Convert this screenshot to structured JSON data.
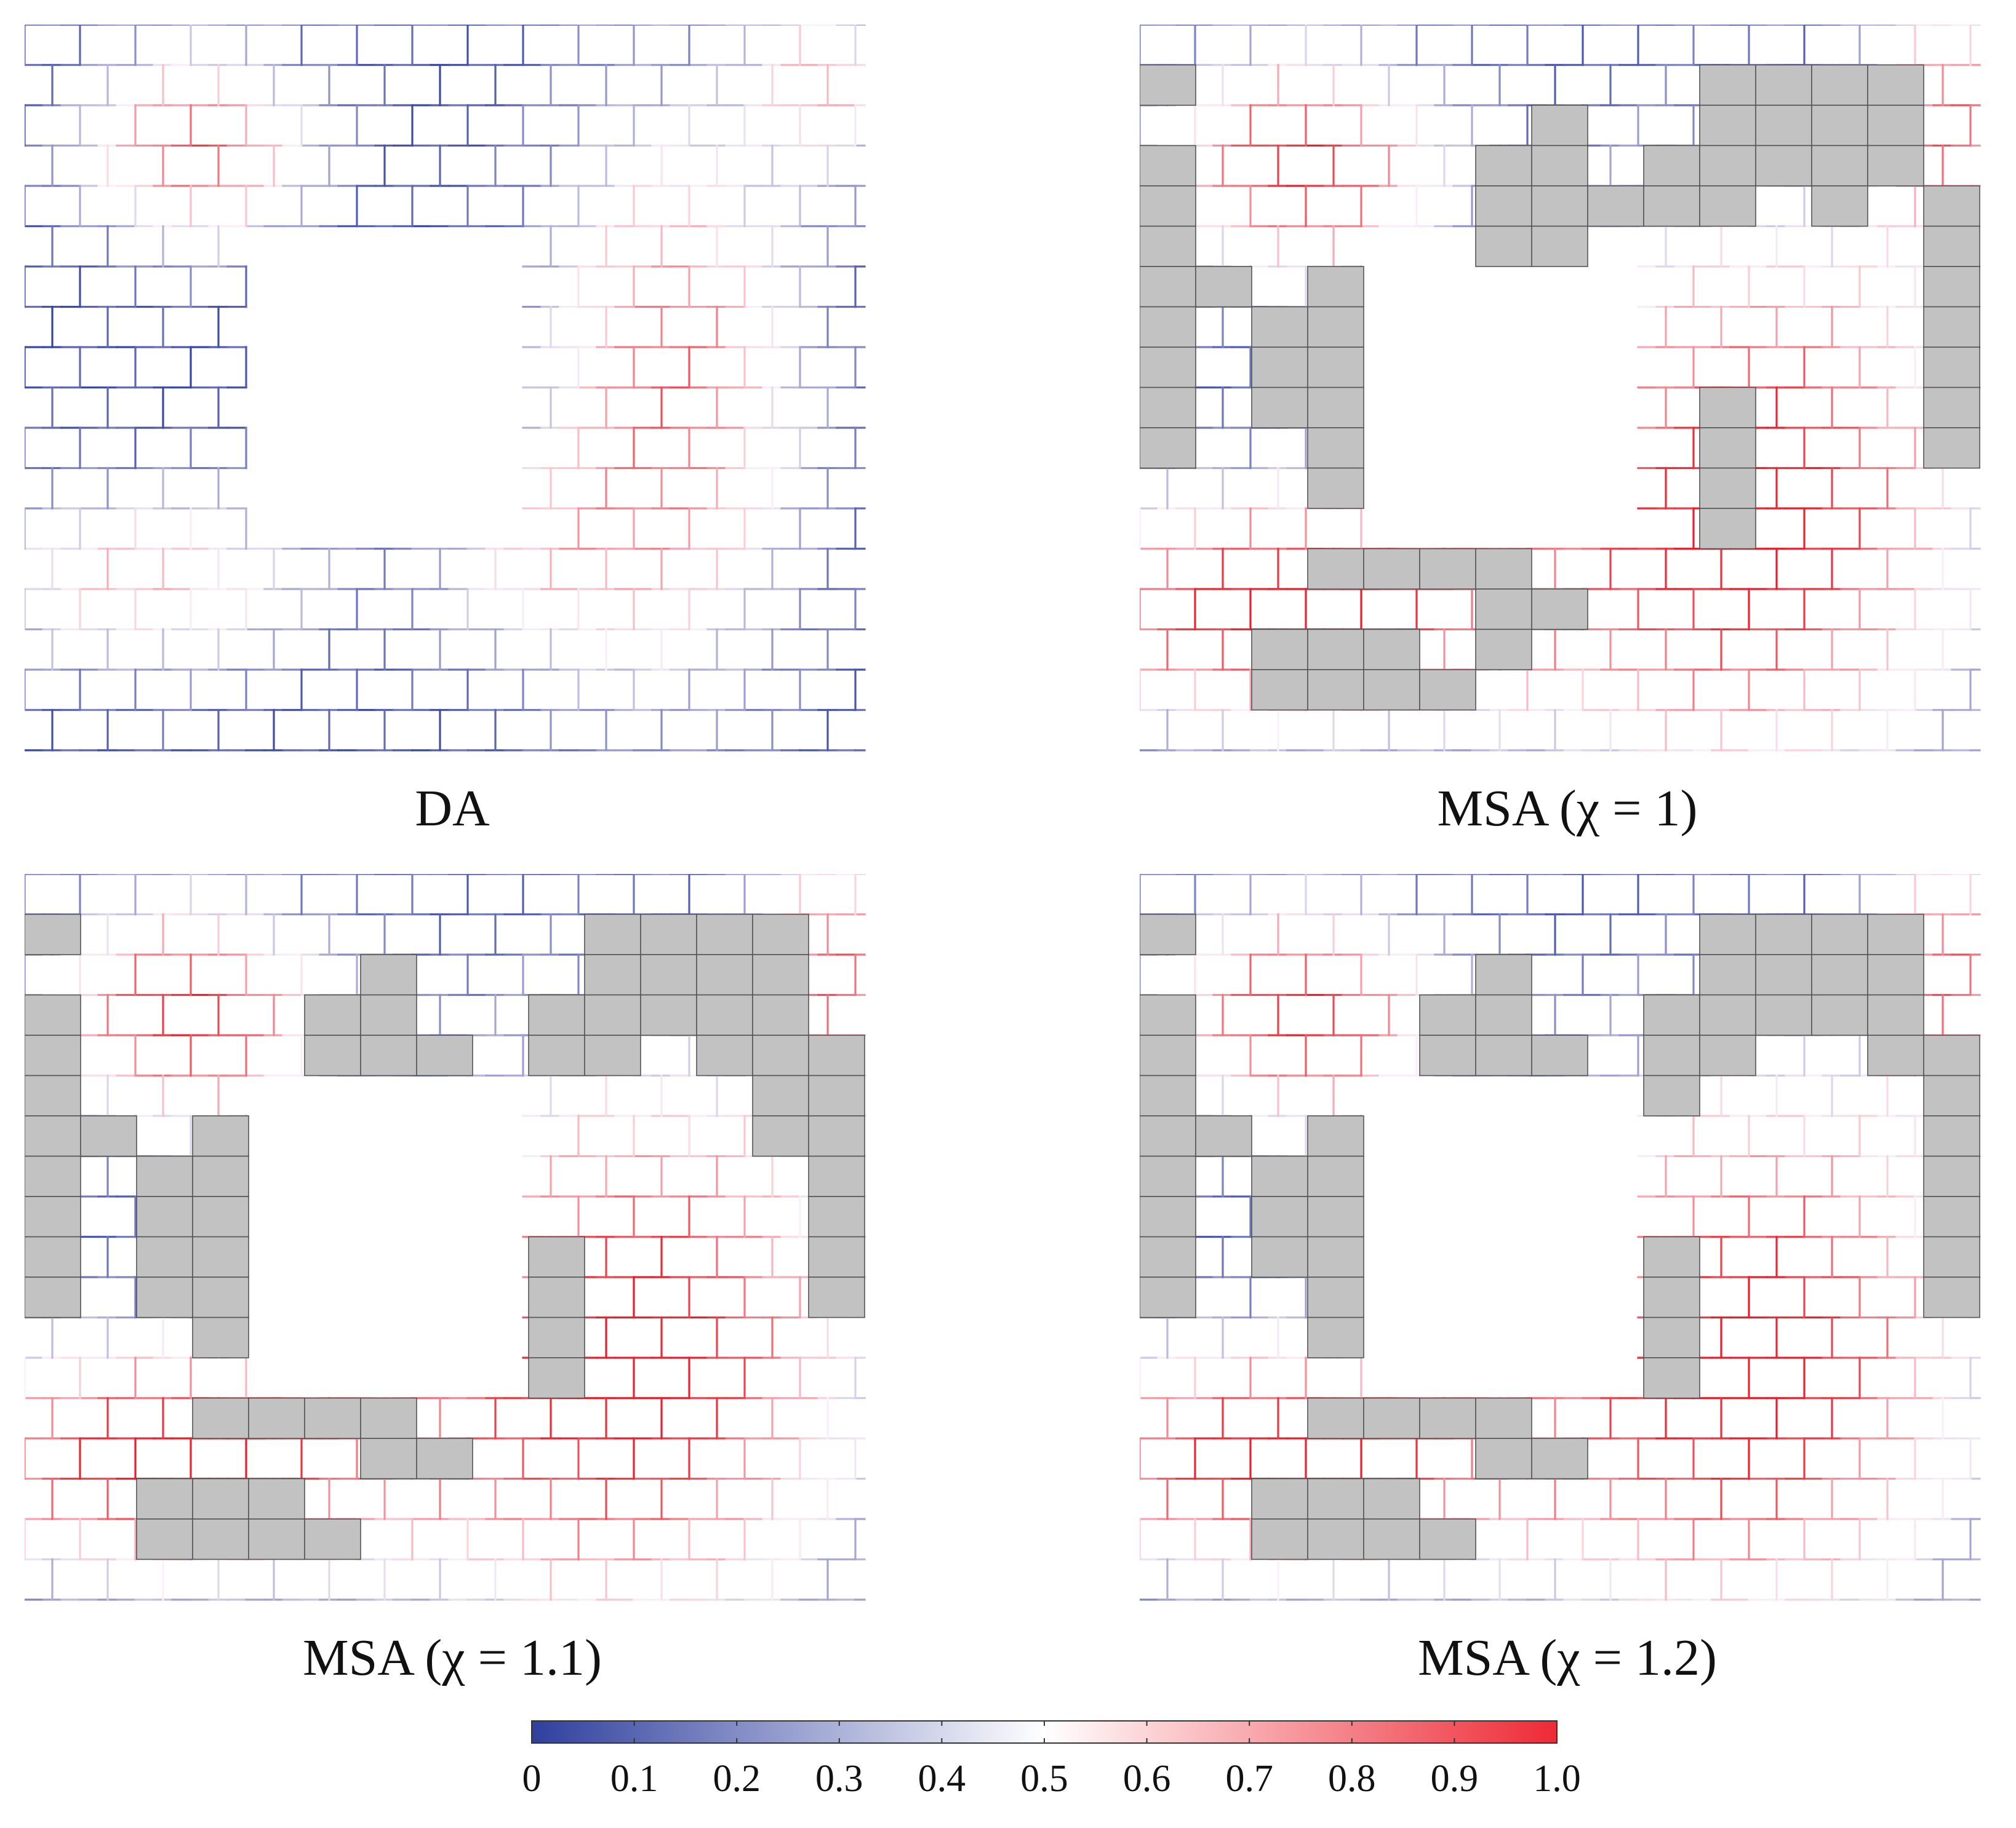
{
  "figure": {
    "panels": [
      {
        "id": "da",
        "caption": "DA",
        "has_blocks": false
      },
      {
        "id": "msa-1",
        "caption": "MSA (χ = 1)",
        "has_blocks": true
      },
      {
        "id": "msa-1-1",
        "caption": "MSA (χ = 1.1)",
        "has_blocks": true
      },
      {
        "id": "msa-1-2",
        "caption": "MSA (χ = 1.2)",
        "has_blocks": true
      }
    ],
    "colorbar": {
      "min": 0,
      "max": 1.0,
      "tick_labels": [
        "0",
        "0.1",
        "0.2",
        "0.3",
        "0.4",
        "0.5",
        "0.6",
        "0.7",
        "0.8",
        "0.9",
        "1.0"
      ],
      "colors": {
        "low": "#2f3f9e",
        "mid": "#ffffff",
        "high": "#ee2a36"
      }
    },
    "colors": {
      "mortar_low": "#2b3a9c",
      "mortar_high": "#e8202d",
      "block_fill": "#c2c2c2",
      "block_stroke": "#555555"
    }
  }
}
